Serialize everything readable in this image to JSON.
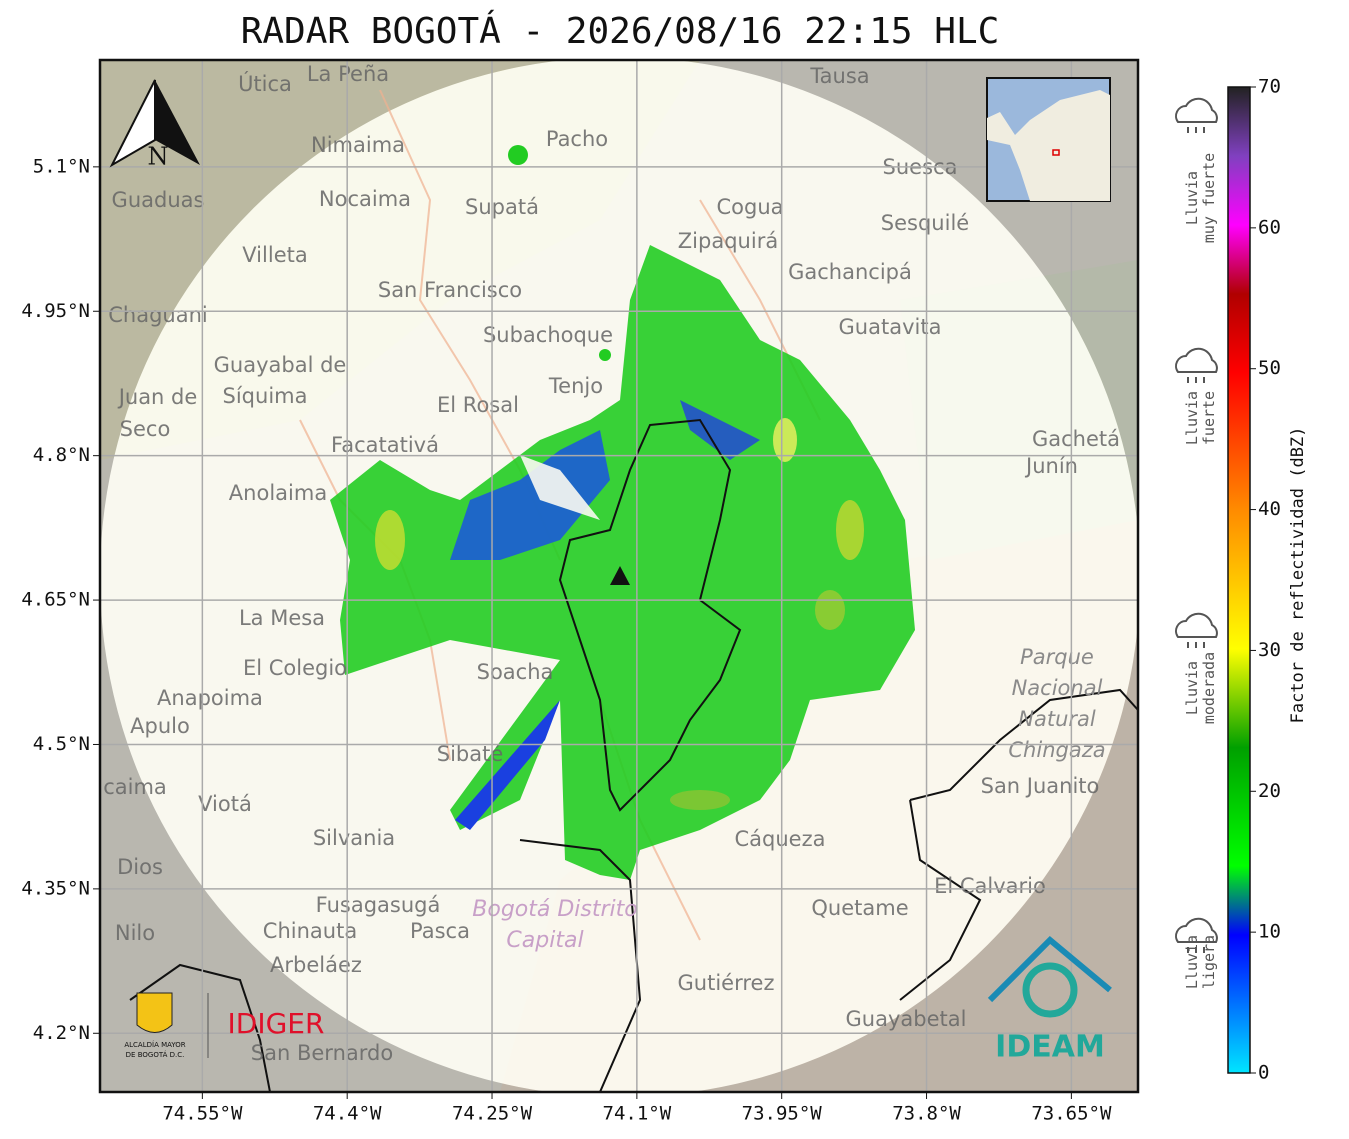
{
  "title": "RADAR BOGOTÁ - 2026/08/16 22:15 HLC",
  "map": {
    "xlim": [
      -74.656,
      -73.581
    ],
    "ylim": [
      4.139,
      5.211
    ],
    "xticks": [
      {
        "value": -74.55,
        "label": "74.55°W"
      },
      {
        "value": -74.4,
        "label": "74.4°W"
      },
      {
        "value": -74.25,
        "label": "74.25°W"
      },
      {
        "value": -74.1,
        "label": "74.1°W"
      },
      {
        "value": -73.95,
        "label": "73.95°W"
      },
      {
        "value": -73.8,
        "label": "73.8°W"
      },
      {
        "value": -73.65,
        "label": "73.65°W"
      }
    ],
    "yticks": [
      {
        "value": 5.1,
        "label": "5.1°N"
      },
      {
        "value": 4.95,
        "label": "4.95°N"
      },
      {
        "value": 4.8,
        "label": "4.8°N"
      },
      {
        "value": 4.65,
        "label": "4.65°N"
      },
      {
        "value": 4.5,
        "label": "4.5°N"
      },
      {
        "value": 4.35,
        "label": "4.35°N"
      },
      {
        "value": 4.2,
        "label": "4.2°N"
      }
    ],
    "grid": true,
    "north_label": "N",
    "places": [
      "La Peña",
      "Útica",
      "Tausa",
      "Pacho",
      "Nimaima",
      "Guaduas",
      "Nocaima",
      "Supatá",
      "Cogua",
      "Suesca",
      "Sesquilé",
      "Zipaquirá",
      "Villeta",
      "Gachancipá",
      "San Francisco",
      "Chaguani",
      "Guatavita",
      "Subachoque",
      "Guayabal de",
      "Síquima",
      "Tenjo",
      "Juan de",
      "El Rosal",
      "Seco",
      "Facatativá",
      "Gachetá",
      "Junín",
      "Anolaima",
      "La Mesa",
      "El Colegio",
      "Soacha",
      "Anapoima",
      "Apulo",
      "Sibaté",
      "Viotá",
      "Silvania",
      "Cáqueza",
      "Quetame",
      "Fusagasugá",
      "Pasca",
      "Nilo",
      "Chinauta",
      "Arbeláez",
      "Gutiérrez",
      "Guayabetal",
      "San Bernardo",
      "El Calvario",
      "San Juanito",
      "Dios",
      "caima"
    ],
    "park": [
      "Parque",
      "Nacional",
      "Natural",
      "Chingaza"
    ],
    "district": [
      "Bogotá Distrito",
      "Capital"
    ]
  },
  "colorbar": {
    "label": "Factor de reflectividad (dBZ)",
    "lim": [
      0,
      70
    ],
    "ticks": [
      0,
      10,
      20,
      30,
      40,
      50,
      60,
      70
    ]
  },
  "rain_levels": [
    [
      "Lluvia",
      "muy fuerte"
    ],
    [
      "Lluvia",
      "fuerte"
    ],
    [
      "Lluvia",
      "moderada"
    ],
    [
      "Lluvia",
      "ligera"
    ]
  ],
  "logos": {
    "alcaldia": [
      "ALCALDÍA MAYOR",
      "DE BOGOTÁ D.C."
    ],
    "idiger": "IDIGER",
    "ideam": "IDEAM"
  }
}
